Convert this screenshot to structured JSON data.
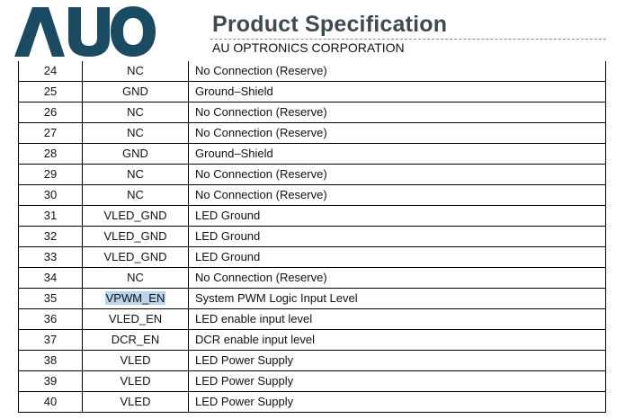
{
  "header": {
    "logo_text": "AUO",
    "title": "Product Specification",
    "company": "AU OPTRONICS CORPORATION",
    "brand_color": "#1b4a63"
  },
  "pin_table": {
    "rows": [
      {
        "pin": "24",
        "symbol": "NC",
        "description": "No Connection (Reserve)"
      },
      {
        "pin": "25",
        "symbol": "GND",
        "description": "Ground–Shield"
      },
      {
        "pin": "26",
        "symbol": "NC",
        "description": "No Connection (Reserve)"
      },
      {
        "pin": "27",
        "symbol": "NC",
        "description": "No Connection (Reserve)"
      },
      {
        "pin": "28",
        "symbol": "GND",
        "description": "Ground–Shield"
      },
      {
        "pin": "29",
        "symbol": "NC",
        "description": "No Connection (Reserve)"
      },
      {
        "pin": "30",
        "symbol": "NC",
        "description": "No Connection (Reserve)"
      },
      {
        "pin": "31",
        "symbol": "VLED_GND",
        "description": "LED Ground"
      },
      {
        "pin": "32",
        "symbol": "VLED_GND",
        "description": "LED Ground"
      },
      {
        "pin": "33",
        "symbol": "VLED_GND",
        "description": "LED Ground"
      },
      {
        "pin": "34",
        "symbol": "NC",
        "description": "No Connection (Reserve)"
      },
      {
        "pin": "35",
        "symbol": "VPWM_EN",
        "description": "System PWM Logic Input Level",
        "highlighted": true
      },
      {
        "pin": "36",
        "symbol": "VLED_EN",
        "description": "LED enable input level"
      },
      {
        "pin": "37",
        "symbol": "DCR_EN",
        "description": "DCR enable input level"
      },
      {
        "pin": "38",
        "symbol": "VLED",
        "description": "LED Power Supply"
      },
      {
        "pin": "39",
        "symbol": "VLED",
        "description": "LED Power Supply"
      },
      {
        "pin": "40",
        "symbol": "VLED",
        "description": "LED Power Supply"
      }
    ]
  }
}
